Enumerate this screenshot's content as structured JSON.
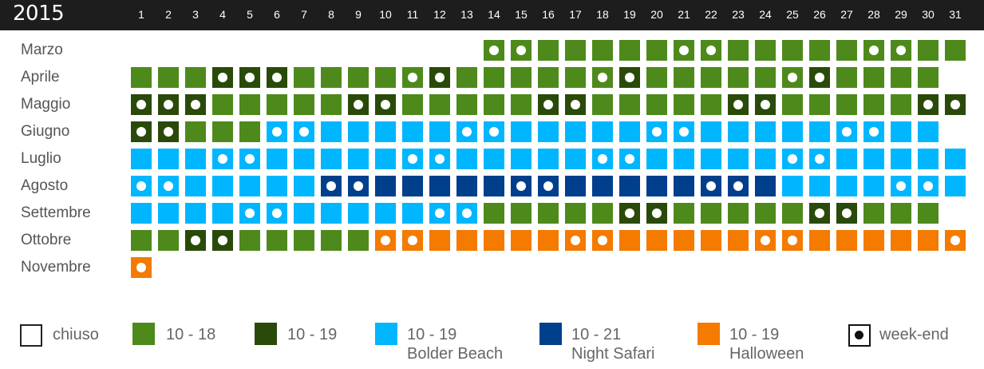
{
  "year": "2015",
  "days": [
    "1",
    "2",
    "3",
    "4",
    "5",
    "6",
    "7",
    "8",
    "9",
    "10",
    "11",
    "12",
    "13",
    "14",
    "15",
    "16",
    "17",
    "18",
    "19",
    "20",
    "21",
    "22",
    "23",
    "24",
    "25",
    "26",
    "27",
    "28",
    "29",
    "30",
    "31"
  ],
  "colors": {
    "G": "#4e8a1b",
    "D": "#2a4a0a",
    "B": "#00b6ff",
    "N": "#003f8c",
    "O": "#f47a00",
    "closed": "#ffffff"
  },
  "months": [
    {
      "name": "Marzo",
      "start": 14,
      "types": "GGGGGGGGGGGGGGGGGG",
      "weekend": [
        14,
        15,
        21,
        22,
        28,
        29
      ]
    },
    {
      "name": "Aprile",
      "start": 1,
      "types": "GGGDDDGGGGGDGGGGGGDGGGGGGDGGGG",
      "weekend": [
        4,
        5,
        6,
        11,
        12,
        18,
        19,
        25,
        26
      ]
    },
    {
      "name": "Maggio",
      "start": 1,
      "types": "DDDGGGGGDDGGGGGDDGGGGGDDGGGGGDD",
      "weekend": [
        1,
        2,
        3,
        9,
        10,
        16,
        17,
        23,
        24,
        30,
        31
      ]
    },
    {
      "name": "Giugno",
      "start": 1,
      "types": "DDGGGBBBBBBBBBBBBBBBBBBBBBBBBB",
      "weekend": [
        1,
        2,
        6,
        7,
        13,
        14,
        20,
        21,
        27,
        28
      ]
    },
    {
      "name": "Luglio",
      "start": 1,
      "types": "BBBBBBBBBBBBBBBBBBBBBBBBBBBBBBB",
      "weekend": [
        4,
        5,
        11,
        12,
        18,
        19,
        25,
        26
      ]
    },
    {
      "name": "Agosto",
      "start": 1,
      "types": "BBBBBBBNNNNNNNNNNNNNNNNNBBBBBBB",
      "weekend": [
        1,
        2,
        8,
        9,
        15,
        16,
        22,
        23,
        29,
        30
      ]
    },
    {
      "name": "Settembre",
      "start": 1,
      "types": "BBBBBBBBBBBBBGGGGGDDGGGGGDDGGG",
      "weekend": [
        5,
        6,
        12,
        13,
        19,
        20,
        26,
        27
      ]
    },
    {
      "name": "Ottobre",
      "start": 1,
      "types": "GGDDGGGGGOOOOOOOOOOOOOOOOOOOOOO",
      "weekend": [
        3,
        4,
        10,
        11,
        17,
        18,
        24,
        25,
        31
      ]
    },
    {
      "name": "Novembre",
      "start": 1,
      "types": "O",
      "weekend": [
        1
      ]
    }
  ],
  "legend": {
    "closed": "chiuso",
    "g": "10 - 18",
    "d": "10 - 19",
    "b1": "10 - 19",
    "b2": "Bolder Beach",
    "n1": "10 - 21",
    "n2": "Night Safari",
    "o1": "10 - 19",
    "o2": "Halloween",
    "weekend": "week-end"
  }
}
